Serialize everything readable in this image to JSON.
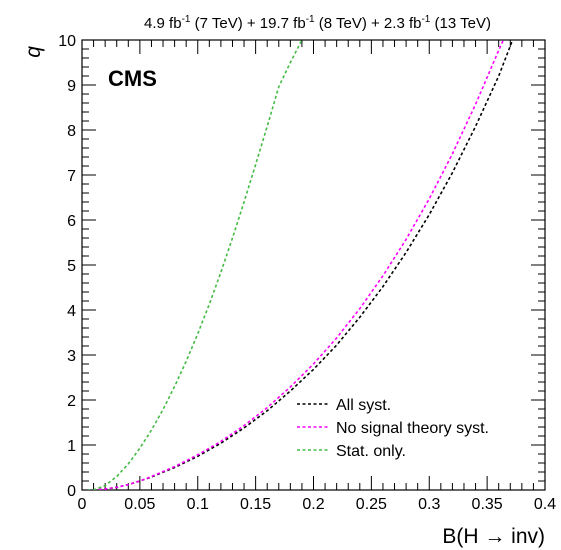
{
  "chart_data": {
    "type": "line",
    "title_parts": [
      {
        "base": "4.9 fb",
        "sup": "-1",
        "rest": " (7 TeV) + 19.7 fb"
      },
      {
        "base": "",
        "sup": "-1",
        "rest": " (8 TeV) + 2.3 fb"
      },
      {
        "base": "",
        "sup": "-1",
        "rest": " (13 TeV)"
      }
    ],
    "experiment_label": "CMS",
    "xlabel": "B(H → inv)",
    "ylabel": "q",
    "xlim": [
      0,
      0.4
    ],
    "ylim": [
      0,
      10
    ],
    "xticks": [
      "0",
      "0.05",
      "0.1",
      "0.15",
      "0.2",
      "0.25",
      "0.3",
      "0.35",
      "0.4"
    ],
    "yticks": [
      "0",
      "1",
      "2",
      "3",
      "4",
      "5",
      "6",
      "7",
      "8",
      "9",
      "10"
    ],
    "legend_position": "bottom-right",
    "series": [
      {
        "name": "All syst.",
        "color": "#000000",
        "style": "dashed",
        "x": [
          0.005,
          0.01,
          0.02,
          0.03,
          0.04,
          0.05,
          0.06,
          0.08,
          0.1,
          0.12,
          0.14,
          0.16,
          0.18,
          0.2,
          0.22,
          0.24,
          0.26,
          0.28,
          0.3,
          0.32,
          0.34,
          0.36,
          0.372
        ],
        "y": [
          0.0,
          0.0,
          0.02,
          0.06,
          0.12,
          0.2,
          0.29,
          0.5,
          0.75,
          1.04,
          1.38,
          1.76,
          2.2,
          2.68,
          3.22,
          3.84,
          4.52,
          5.28,
          6.12,
          7.05,
          8.08,
          9.2,
          10.0
        ]
      },
      {
        "name": "No signal theory syst.",
        "color": "#ff00ff",
        "style": "dashed",
        "x": [
          0.005,
          0.01,
          0.02,
          0.03,
          0.04,
          0.05,
          0.06,
          0.08,
          0.1,
          0.12,
          0.14,
          0.16,
          0.18,
          0.2,
          0.22,
          0.24,
          0.26,
          0.28,
          0.3,
          0.32,
          0.34,
          0.36,
          0.364
        ],
        "y": [
          0.0,
          0.0,
          0.02,
          0.06,
          0.12,
          0.2,
          0.3,
          0.52,
          0.78,
          1.08,
          1.43,
          1.83,
          2.29,
          2.8,
          3.38,
          4.03,
          4.76,
          5.57,
          6.47,
          7.47,
          8.57,
          9.77,
          10.0
        ]
      },
      {
        "name": "Stat. only.",
        "color": "#44bb44",
        "style": "dashed",
        "x": [
          0.005,
          0.01,
          0.02,
          0.03,
          0.04,
          0.05,
          0.06,
          0.07,
          0.08,
          0.09,
          0.1,
          0.11,
          0.12,
          0.13,
          0.14,
          0.15,
          0.16,
          0.17,
          0.18,
          0.19
        ],
        "y": [
          0.0,
          0.0,
          0.1,
          0.3,
          0.58,
          0.93,
          1.33,
          1.79,
          2.3,
          2.86,
          3.47,
          4.13,
          4.84,
          5.6,
          6.4,
          7.23,
          8.08,
          8.96,
          9.5,
          10.0
        ]
      }
    ]
  }
}
